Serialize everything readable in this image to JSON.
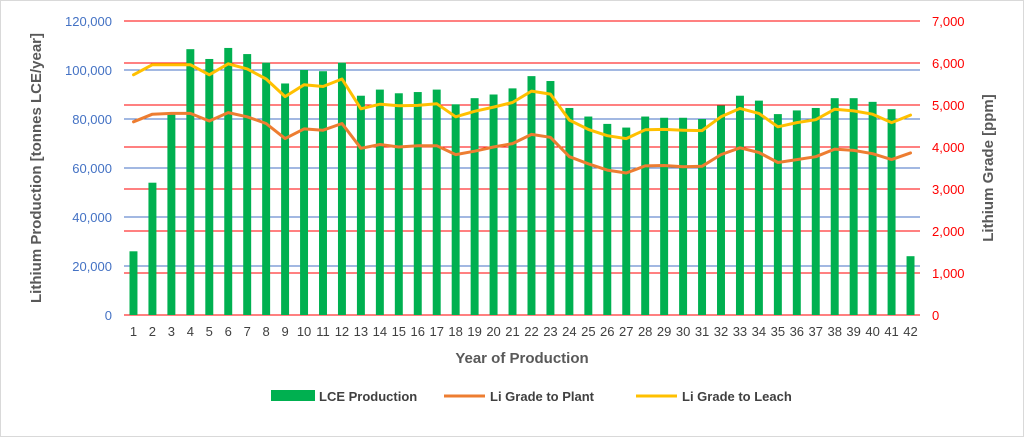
{
  "chart_data": {
    "type": "bar",
    "title": "",
    "xlabel": "Year of Production",
    "ylabel": "Lithium Production [tonnes LCE/year]",
    "y2label": "Lithium Grade [ppm]",
    "ylim": [
      0,
      120000
    ],
    "y2lim": [
      0,
      7000
    ],
    "y_ticks": [
      "0",
      "20,000",
      "40,000",
      "60,000",
      "80,000",
      "100,000",
      "120,000"
    ],
    "y2_ticks": [
      "0",
      "1,000",
      "2,000",
      "3,000",
      "4,000",
      "5,000",
      "6,000",
      "7,000"
    ],
    "categories": [
      "1",
      "2",
      "3",
      "4",
      "5",
      "6",
      "7",
      "8",
      "9",
      "10",
      "11",
      "12",
      "13",
      "14",
      "15",
      "16",
      "17",
      "18",
      "19",
      "20",
      "21",
      "22",
      "23",
      "24",
      "25",
      "26",
      "27",
      "28",
      "29",
      "30",
      "31",
      "32",
      "33",
      "34",
      "35",
      "36",
      "37",
      "38",
      "39",
      "40",
      "41",
      "42"
    ],
    "grid": true,
    "legend_position": "bottom",
    "series": [
      {
        "name": "LCE Production",
        "type": "bar",
        "axis": "left",
        "color": "#00b050",
        "values": [
          26000,
          54000,
          82000,
          108500,
          104500,
          109000,
          106500,
          103000,
          94500,
          100000,
          99500,
          103000,
          89500,
          92000,
          90500,
          91000,
          92000,
          86000,
          88500,
          90000,
          92500,
          97500,
          95500,
          84500,
          81000,
          78000,
          76500,
          81000,
          80500,
          80500,
          80000,
          85500,
          89500,
          87500,
          82000,
          83500,
          84500,
          88500,
          88500,
          87000,
          84000,
          24000
        ]
      },
      {
        "name": "Li Grade to Plant",
        "type": "line",
        "axis": "right",
        "color": "#ed7d31",
        "values": [
          4600,
          4780,
          4800,
          4800,
          4620,
          4820,
          4720,
          4560,
          4200,
          4430,
          4400,
          4560,
          3970,
          4060,
          4000,
          4030,
          4030,
          3820,
          3900,
          4000,
          4080,
          4300,
          4230,
          3770,
          3600,
          3450,
          3380,
          3550,
          3560,
          3530,
          3540,
          3820,
          3980,
          3870,
          3630,
          3700,
          3770,
          3950,
          3920,
          3840,
          3700,
          3860
        ]
      },
      {
        "name": "Li Grade to Leach",
        "type": "line",
        "axis": "right",
        "color": "#ffc000",
        "values": [
          5720,
          5960,
          5960,
          5960,
          5720,
          5980,
          5860,
          5620,
          5200,
          5480,
          5440,
          5620,
          4910,
          5020,
          4980,
          4990,
          5030,
          4720,
          4850,
          4950,
          5060,
          5330,
          5260,
          4640,
          4420,
          4270,
          4200,
          4410,
          4420,
          4400,
          4390,
          4720,
          4920,
          4800,
          4480,
          4580,
          4650,
          4900,
          4860,
          4780,
          4580,
          4760
        ]
      }
    ]
  }
}
